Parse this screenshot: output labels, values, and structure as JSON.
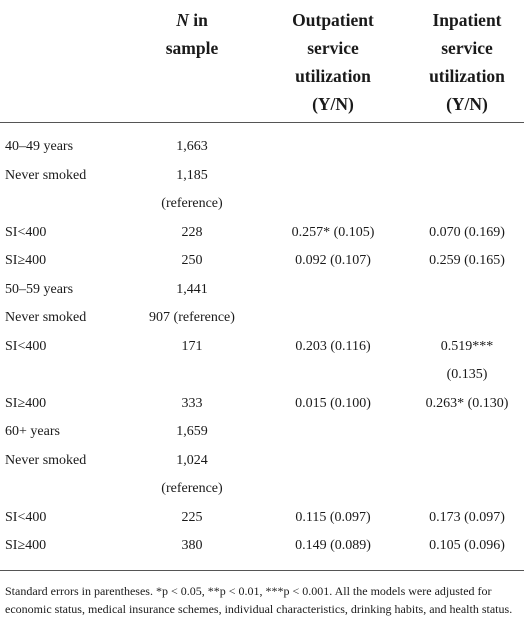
{
  "header": {
    "n_italic": "N",
    "n_rest1": " in",
    "n_rest2": "sample",
    "out_line1": "Outpatient",
    "out_line2": "service",
    "out_line3": "utilization",
    "out_line4": "(Y/N)",
    "in_line1": "Inpatient",
    "in_line2": "service",
    "in_line3": "utilization",
    "in_line4": "(Y/N)"
  },
  "rows": [
    {
      "label": "40–49 years",
      "n": "1,663",
      "n2": "",
      "out": "",
      "out2": "",
      "in": "",
      "in2": ""
    },
    {
      "label": "Never smoked",
      "n": "1,185",
      "n2": "(reference)",
      "out": "",
      "out2": "",
      "in": "",
      "in2": ""
    },
    {
      "label": "SI<400",
      "n": "228",
      "n2": "",
      "out": "0.257* (0.105)",
      "out2": "",
      "in": "0.070 (0.169)",
      "in2": ""
    },
    {
      "label": "SI≥400",
      "n": "250",
      "n2": "",
      "out": "0.092 (0.107)",
      "out2": "",
      "in": "0.259 (0.165)",
      "in2": ""
    },
    {
      "label": "50–59 years",
      "n": "1,441",
      "n2": "",
      "out": "",
      "out2": "",
      "in": "",
      "in2": ""
    },
    {
      "label": "Never smoked",
      "n": "907 (reference)",
      "n2": "",
      "out": "",
      "out2": "",
      "in": "",
      "in2": ""
    },
    {
      "label": "SI<400",
      "n": "171",
      "n2": "",
      "out": "0.203 (0.116)",
      "out2": "",
      "in": "0.519***",
      "in2": "(0.135)"
    },
    {
      "label": "SI≥400",
      "n": "333",
      "n2": "",
      "out": "0.015 (0.100)",
      "out2": "",
      "in": "0.263* (0.130)",
      "in2": ""
    },
    {
      "label": "60+ years",
      "n": "1,659",
      "n2": "",
      "out": "",
      "out2": "",
      "in": "",
      "in2": ""
    },
    {
      "label": "Never smoked",
      "n": "1,024",
      "n2": "(reference)",
      "out": "",
      "out2": "",
      "in": "",
      "in2": ""
    },
    {
      "label": "SI<400",
      "n": "225",
      "n2": "",
      "out": "0.115 (0.097)",
      "out2": "",
      "in": "0.173 (0.097)",
      "in2": ""
    },
    {
      "label": "SI≥400",
      "n": "380",
      "n2": "",
      "out": "0.149 (0.089)",
      "out2": "",
      "in": "0.105 (0.096)",
      "in2": ""
    }
  ],
  "footnote": "Standard errors in parentheses. *p < 0.05, **p < 0.01, ***p < 0.001. All the models were adjusted for economic status, medical insurance schemes, individual characteristics, drinking habits, and health status."
}
